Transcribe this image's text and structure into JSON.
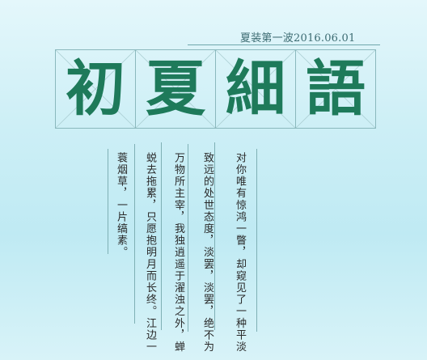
{
  "header": {
    "subtitle": "夏装第一波2016.06.01"
  },
  "title": {
    "chars": [
      "初",
      "夏",
      "細",
      "語"
    ]
  },
  "poem": {
    "columns": [
      "对你唯有惊鸿一瞥，却窥见了一种平淡",
      "致远的处世态度，淡罢，淡罢，绝不为",
      "万物所主宰，我独逍遥于濯浊之外，蝉",
      "蜕去拖累，只愿抱明月而长终。江边一",
      "蓑烟草，一片缟素。"
    ]
  },
  "colors": {
    "title_text": "#1e7a5a",
    "grid_line": "#8ab8bd",
    "background_top": "#e4f7fb",
    "background_mid": "#bfeaf3"
  }
}
